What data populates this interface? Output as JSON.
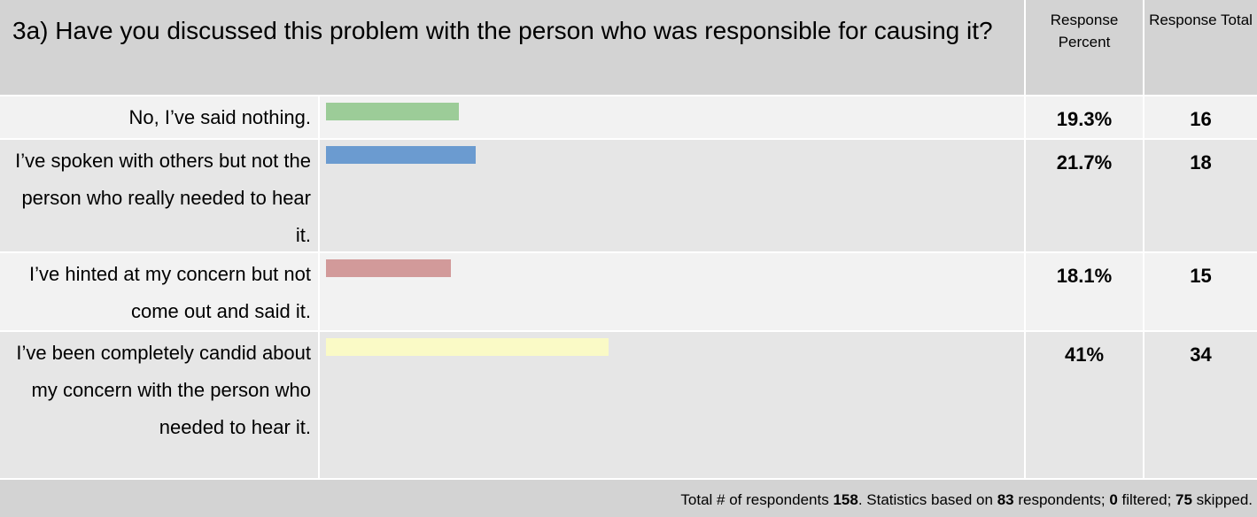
{
  "question": "3a)  Have you discussed this problem with the person who was responsible for causing it?",
  "columns": {
    "percent": "Response Percent",
    "total": "Response Total"
  },
  "chart_data": {
    "type": "bar",
    "orientation": "horizontal",
    "categories": [
      "No, I’ve said nothing.",
      "I’ve spoken with others but not the person who really needed to hear it.",
      "I’ve hinted at my concern but not come out and said it.",
      "I’ve been completely candid about my concern with the person who needed to hear it."
    ],
    "values": [
      19.3,
      21.7,
      18.1,
      41
    ],
    "percent_labels": [
      "19.3%",
      "21.7%",
      "18.1%",
      "41%"
    ],
    "totals": [
      16,
      18,
      15,
      34
    ],
    "colors": [
      "#9ccc98",
      "#6b9bd0",
      "#d29a9a",
      "#fafac6"
    ],
    "xlim": [
      0,
      100
    ],
    "grid": false
  },
  "footer": {
    "prefix": "Total # of respondents ",
    "respondents": "158",
    "mid1": ". Statistics based on ",
    "based_on": "83",
    "mid2": " respondents; ",
    "filtered": "0",
    "mid3": " filtered; ",
    "skipped": "75",
    "suffix": " skipped."
  }
}
